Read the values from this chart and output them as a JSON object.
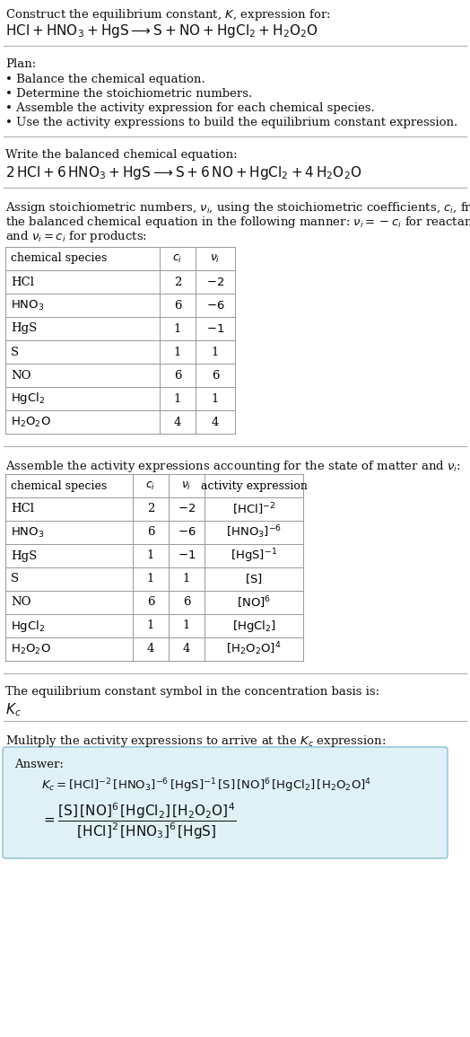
{
  "bg_color": "#ffffff",
  "text_color": "#000000",
  "title_line1": "Construct the equilibrium constant, $K$, expression for:",
  "title_line2": "$\\mathrm{HCl + HNO_3 + HgS} \\longrightarrow \\mathrm{S + NO + HgCl_2 + H_2O_2O}$",
  "plan_header": "Plan:",
  "plan_bullets": [
    "Balance the chemical equation.",
    "Determine the stoichiometric numbers.",
    "Assemble the activity expression for each chemical species.",
    "Use the activity expressions to build the equilibrium constant expression."
  ],
  "balanced_header": "Write the balanced chemical equation:",
  "balanced_eq": "$\\mathrm{2\\,HCl + 6\\,HNO_3 + HgS} \\longrightarrow \\mathrm{S + 6\\,NO + HgCl_2 + 4\\,H_2O_2O}$",
  "assign_text_parts": [
    "Assign stoichiometric numbers, $\\nu_i$, using the stoichiometric coefficients, $c_i$, from",
    "the balanced chemical equation in the following manner: $\\nu_i = -c_i$ for reactants",
    "and $\\nu_i = c_i$ for products:"
  ],
  "table1_headers": [
    "chemical species",
    "$c_i$",
    "$\\nu_i$"
  ],
  "table1_rows": [
    [
      "HCl",
      "2",
      "$-2$"
    ],
    [
      "$\\mathrm{HNO_3}$",
      "6",
      "$-6$"
    ],
    [
      "HgS",
      "1",
      "$-1$"
    ],
    [
      "S",
      "1",
      "1"
    ],
    [
      "NO",
      "6",
      "6"
    ],
    [
      "$\\mathrm{HgCl_2}$",
      "1",
      "1"
    ],
    [
      "$\\mathrm{H_2O_2O}$",
      "4",
      "4"
    ]
  ],
  "assemble_text": "Assemble the activity expressions accounting for the state of matter and $\\nu_i$:",
  "table2_headers": [
    "chemical species",
    "$c_i$",
    "$\\nu_i$",
    "activity expression"
  ],
  "table2_rows": [
    [
      "HCl",
      "2",
      "$-2$",
      "$[\\mathrm{HCl}]^{-2}$"
    ],
    [
      "$\\mathrm{HNO_3}$",
      "6",
      "$-6$",
      "$[\\mathrm{HNO_3}]^{-6}$"
    ],
    [
      "HgS",
      "1",
      "$-1$",
      "$[\\mathrm{HgS}]^{-1}$"
    ],
    [
      "S",
      "1",
      "1",
      "$[\\mathrm{S}]$"
    ],
    [
      "NO",
      "6",
      "6",
      "$[\\mathrm{NO}]^6$"
    ],
    [
      "$\\mathrm{HgCl_2}$",
      "1",
      "1",
      "$[\\mathrm{HgCl_2}]$"
    ],
    [
      "$\\mathrm{H_2O_2O}$",
      "4",
      "4",
      "$[\\mathrm{H_2O_2O}]^4$"
    ]
  ],
  "kc_header": "The equilibrium constant symbol in the concentration basis is:",
  "kc_symbol": "$K_c$",
  "multiply_header": "Mulitply the activity expressions to arrive at the $K_c$ expression:",
  "answer_label": "Answer:",
  "answer_line1": "$K_c = [\\mathrm{HCl}]^{-2}\\,[\\mathrm{HNO_3}]^{-6}\\,[\\mathrm{HgS}]^{-1}\\,[\\mathrm{S}]\\,[\\mathrm{NO}]^6\\,[\\mathrm{HgCl_2}]\\,[\\mathrm{H_2O_2O}]^4$",
  "answer_eq_lhs": "$= \\dfrac{[\\mathrm{S}]\\,[\\mathrm{NO}]^6\\,[\\mathrm{HgCl_2}]\\,[\\mathrm{H_2O_2O}]^4}{[\\mathrm{HCl}]^2\\,[\\mathrm{HNO_3}]^6\\,[\\mathrm{HgS}]}$",
  "answer_box_color": "#dff0f7",
  "answer_box_border": "#8bbdd4",
  "fig_width": 5.24,
  "fig_height": 11.55,
  "dpi": 100
}
